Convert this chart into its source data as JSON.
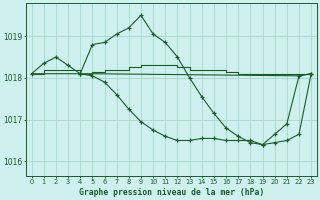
{
  "background_color": "#cef0ee",
  "grid_color": "#a8d8cc",
  "line_color": "#1a5c28",
  "title": "Graphe pression niveau de la mer (hPa)",
  "xlim": [
    -0.5,
    23.5
  ],
  "ylim": [
    1015.65,
    1019.8
  ],
  "yticks": [
    1016,
    1017,
    1018,
    1019
  ],
  "xticks": [
    0,
    1,
    2,
    3,
    4,
    5,
    6,
    7,
    8,
    9,
    10,
    11,
    12,
    13,
    14,
    15,
    16,
    17,
    18,
    19,
    20,
    21,
    22,
    23
  ],
  "s1_x": [
    0,
    1,
    2,
    3,
    4,
    5,
    6,
    7,
    8,
    9,
    10,
    11,
    12,
    13,
    14,
    15,
    16,
    17,
    18,
    19,
    20,
    21,
    22,
    23
  ],
  "s1_y": [
    1018.1,
    1018.35,
    1018.5,
    1018.3,
    1018.1,
    1018.8,
    1018.85,
    1019.05,
    1019.2,
    1019.5,
    1019.05,
    1018.85,
    1018.5,
    1018.0,
    1017.55,
    1017.15,
    1016.8,
    1016.6,
    1016.45,
    1016.4,
    1016.65,
    1016.9,
    1018.05,
    1018.1
  ],
  "s2_x": [
    0,
    1,
    2,
    3,
    4,
    5,
    6,
    7,
    8,
    9,
    10,
    11,
    12,
    13,
    14,
    15,
    16,
    17,
    18,
    19,
    20,
    21,
    22,
    23
  ],
  "s2_y": [
    1018.1,
    1018.2,
    1018.2,
    1018.2,
    1018.1,
    1018.15,
    1018.2,
    1018.2,
    1018.25,
    1018.3,
    1018.3,
    1018.3,
    1018.25,
    1018.2,
    1018.2,
    1018.2,
    1018.15,
    1018.1,
    1018.1,
    1018.1,
    1018.1,
    1018.1,
    1018.1,
    1018.1
  ],
  "s3_x": [
    0,
    4,
    5,
    22,
    23
  ],
  "s3_y": [
    1018.1,
    1018.1,
    1018.1,
    1018.05,
    1018.1
  ],
  "s4_x": [
    4,
    5,
    6,
    7,
    8,
    9,
    10,
    11,
    12,
    13,
    14,
    15,
    16,
    17,
    18,
    19,
    20,
    21,
    22,
    23
  ],
  "s4_y": [
    1018.1,
    1018.05,
    1017.9,
    1017.6,
    1017.25,
    1016.95,
    1016.75,
    1016.6,
    1016.5,
    1016.5,
    1016.55,
    1016.55,
    1016.5,
    1016.5,
    1016.5,
    1016.4,
    1016.45,
    1016.5,
    1016.65,
    1018.1
  ]
}
